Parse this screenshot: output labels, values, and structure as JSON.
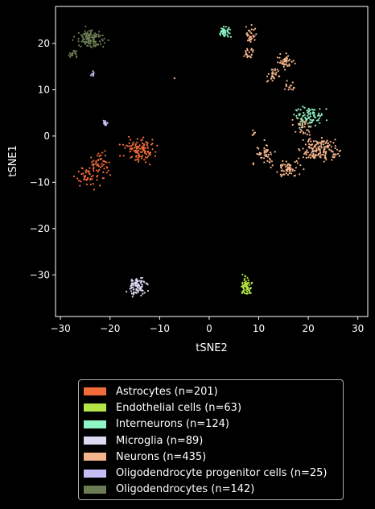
{
  "chart_data": {
    "type": "scatter",
    "xlabel": "tSNE2",
    "ylabel": "tSNE1",
    "xlim": [
      -31,
      32
    ],
    "ylim": [
      -39,
      28
    ],
    "xticks": [
      -30,
      -20,
      -10,
      0,
      10,
      20,
      30
    ],
    "yticks": [
      -30,
      -20,
      -10,
      0,
      10,
      20
    ],
    "grid": false,
    "legend_position": "bottom",
    "series": [
      {
        "name": "Astrocytes (n=201)",
        "color": "#f26b3a",
        "n": 201,
        "clusters": [
          [
            -14,
            -3,
            2.6,
            2.1,
            110
          ],
          [
            -22,
            -6,
            2.2,
            1.9,
            45
          ],
          [
            -24,
            -9,
            2.2,
            1.8,
            46
          ]
        ]
      },
      {
        "name": "Endothelial cells (n=63)",
        "color": "#b2e545",
        "n": 63,
        "clusters": [
          [
            7.5,
            -32.5,
            0.9,
            1.7,
            63
          ]
        ]
      },
      {
        "name": "Interneurons (n=124)",
        "color": "#8ff5c4",
        "n": 124,
        "clusters": [
          [
            3,
            22.5,
            1.1,
            0.9,
            40
          ],
          [
            20,
            4,
            2.5,
            2.0,
            84
          ]
        ]
      },
      {
        "name": "Microglia (n=89)",
        "color": "#dcd8f2",
        "n": 89,
        "clusters": [
          [
            -14.5,
            -32.5,
            1.6,
            1.6,
            89
          ]
        ]
      },
      {
        "name": "Neurons (n=435)",
        "color": "#f3b48c",
        "n": 435,
        "clusters": [
          [
            22.5,
            -3,
            3.0,
            2.3,
            150
          ],
          [
            16,
            -7,
            2.0,
            1.6,
            60
          ],
          [
            11,
            -4,
            2.0,
            1.8,
            50
          ],
          [
            15.5,
            16,
            1.5,
            1.3,
            45
          ],
          [
            13,
            13,
            1.0,
            1.4,
            30
          ],
          [
            16.5,
            11,
            1.0,
            0.8,
            15
          ],
          [
            8.5,
            22,
            0.8,
            1.6,
            30
          ],
          [
            8,
            18,
            1.0,
            1.0,
            20
          ],
          [
            19,
            2,
            1.5,
            1.5,
            30
          ],
          [
            9,
            0.5,
            0.8,
            0.6,
            5
          ]
        ]
      },
      {
        "name": "Oligodendrocyte progenitor cells (n=25)",
        "color": "#c7bdf5",
        "n": 25,
        "clusters": [
          [
            -21,
            2.8,
            0.6,
            0.7,
            17
          ],
          [
            -23.6,
            13.3,
            0.3,
            0.5,
            8
          ]
        ]
      },
      {
        "name": "Oligodendrocytes (n=142)",
        "color": "#6b7c52",
        "n": 142,
        "clusters": [
          [
            -24,
            21,
            2.2,
            1.6,
            122
          ],
          [
            -27.5,
            17.8,
            0.8,
            0.6,
            20
          ]
        ]
      }
    ],
    "outliers": [
      {
        "x": -7,
        "y": 12.5,
        "color": "#f3b48c"
      }
    ]
  }
}
